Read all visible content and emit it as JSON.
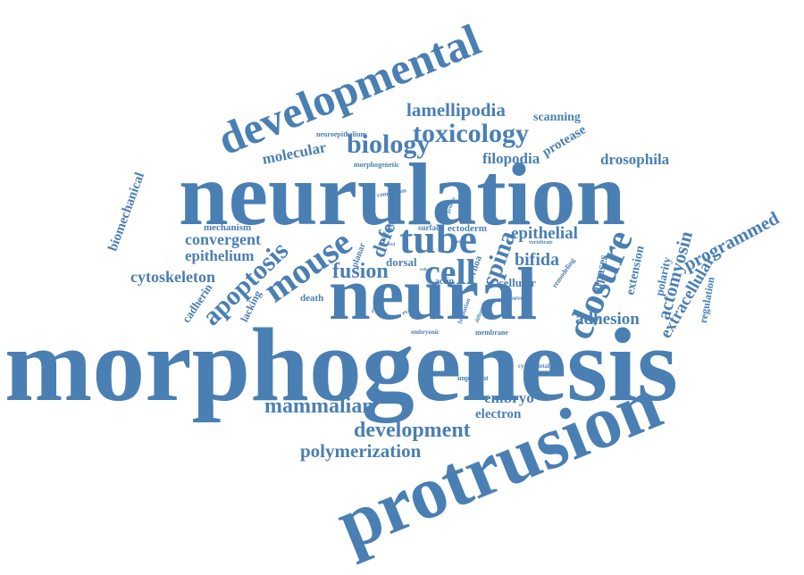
{
  "colors": {
    "word": "#4a7fb3",
    "background": "#ffffff"
  },
  "words": [
    {
      "id": "morphogenesis",
      "text": "morphogenesis"
    },
    {
      "id": "neurulation",
      "text": "neurulation"
    },
    {
      "id": "neural",
      "text": "neural"
    },
    {
      "id": "protrusion",
      "text": "protrusion"
    },
    {
      "id": "developmental",
      "text": "developmental"
    },
    {
      "id": "mouse",
      "text": "mouse"
    },
    {
      "id": "tube",
      "text": "tube"
    },
    {
      "id": "cell",
      "text": "cell"
    },
    {
      "id": "closure",
      "text": "closure"
    },
    {
      "id": "biology",
      "text": "biology"
    },
    {
      "id": "toxicology",
      "text": "toxicology"
    },
    {
      "id": "apoptosis",
      "text": "apoptosis"
    },
    {
      "id": "fusion",
      "text": "fusion"
    },
    {
      "id": "mammalian",
      "text": "mammalian"
    },
    {
      "id": "development",
      "text": "development"
    },
    {
      "id": "polymerization",
      "text": "polymerization"
    },
    {
      "id": "lamellipodia",
      "text": "lamellipodia"
    },
    {
      "id": "spina",
      "text": "spina"
    },
    {
      "id": "bifida",
      "text": "bifida"
    },
    {
      "id": "defect",
      "text": "defect"
    },
    {
      "id": "epithelial",
      "text": "epithelial"
    },
    {
      "id": "convergent",
      "text": "convergent"
    },
    {
      "id": "epithelium",
      "text": "epithelium"
    },
    {
      "id": "cytoskeleton",
      "text": "cytoskeleton"
    },
    {
      "id": "programmed",
      "text": "programmed"
    },
    {
      "id": "extracellular",
      "text": "extracellular"
    },
    {
      "id": "actomyosin",
      "text": "actomyosin"
    },
    {
      "id": "adhesion",
      "text": "adhesion"
    },
    {
      "id": "drosophila",
      "text": "drosophila"
    },
    {
      "id": "filopodia",
      "text": "filopodia"
    },
    {
      "id": "molecular",
      "text": "molecular"
    },
    {
      "id": "biomechanical",
      "text": "biomechanical"
    },
    {
      "id": "embryo",
      "text": "embryo"
    },
    {
      "id": "electron",
      "text": "electron"
    },
    {
      "id": "scanning",
      "text": "scanning"
    },
    {
      "id": "protease",
      "text": "protease"
    },
    {
      "id": "extension",
      "text": "extension"
    },
    {
      "id": "polarity",
      "text": "polarity"
    },
    {
      "id": "gtpases",
      "text": "gtpases"
    },
    {
      "id": "regulation",
      "text": "regulation"
    },
    {
      "id": "cadherin",
      "text": "cadherin"
    },
    {
      "id": "lacking",
      "text": "lacking"
    },
    {
      "id": "mechanism",
      "text": "mechanism"
    },
    {
      "id": "dorsal",
      "text": "dorsal"
    },
    {
      "id": "cellular",
      "text": "cellular"
    },
    {
      "id": "ectoderm",
      "text": "ectoderm"
    },
    {
      "id": "death",
      "text": "death"
    },
    {
      "id": "rhoa",
      "text": "rhoa"
    },
    {
      "id": "actin",
      "text": "actin"
    },
    {
      "id": "surface",
      "text": "surface"
    },
    {
      "id": "neuroepithelium",
      "text": "neuroepithelium"
    },
    {
      "id": "morphogenetic",
      "text": "morphogenetic"
    },
    {
      "id": "completion",
      "text": "completion"
    },
    {
      "id": "planar",
      "text": "planar"
    },
    {
      "id": "matrix",
      "text": "matrix"
    },
    {
      "id": "stem",
      "text": "stem"
    },
    {
      "id": "important",
      "text": "important"
    },
    {
      "id": "cytoskeletal",
      "text": "cytoskeletal"
    },
    {
      "id": "membrane",
      "text": "membrane"
    },
    {
      "id": "embryonic",
      "text": "embryonic"
    },
    {
      "id": "vertebrate",
      "text": "vertebrate"
    },
    {
      "id": "several",
      "text": "several"
    },
    {
      "id": "remodeling",
      "text": "remodeling"
    },
    {
      "id": "event",
      "text": "event"
    },
    {
      "id": "process",
      "text": "process"
    },
    {
      "id": "involved",
      "text": "involved"
    },
    {
      "id": "formation",
      "text": "formation"
    },
    {
      "id": "example",
      "text": "example"
    },
    {
      "id": "different",
      "text": "different"
    },
    {
      "id": "essential",
      "text": "essential"
    },
    {
      "id": "role",
      "text": "role"
    },
    {
      "id": "both",
      "text": "both"
    }
  ]
}
